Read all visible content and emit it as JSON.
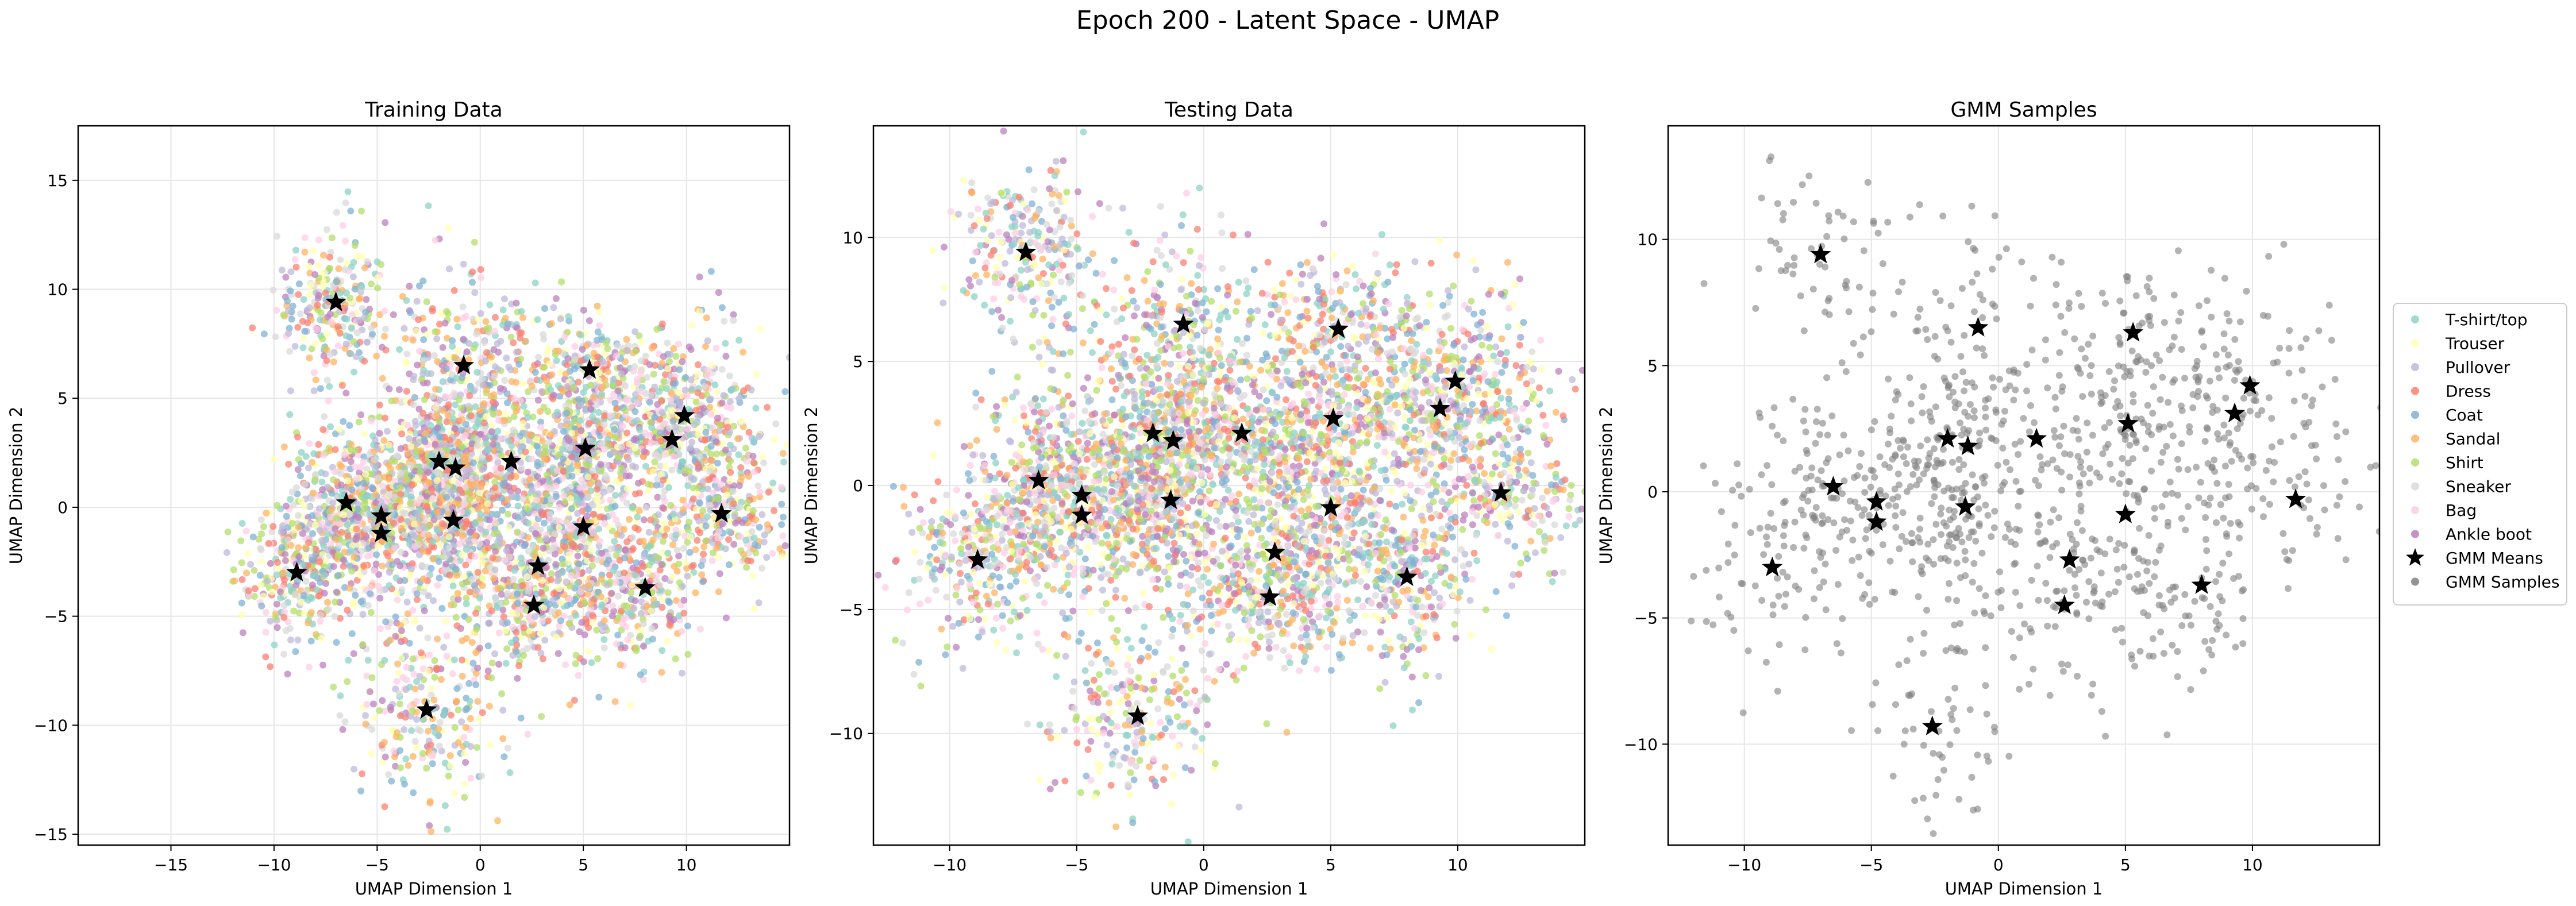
{
  "figure": {
    "suptitle": "Epoch 200 - Latent Space - UMAP"
  },
  "legend": {
    "placement": "right-center",
    "items": [
      {
        "label": "T-shirt/top",
        "color": "#8dd3c7",
        "marker": "dot"
      },
      {
        "label": "Trouser",
        "color": "#ffffb3",
        "marker": "dot"
      },
      {
        "label": "Pullover",
        "color": "#bebada",
        "marker": "dot"
      },
      {
        "label": "Dress",
        "color": "#fb8072",
        "marker": "dot"
      },
      {
        "label": "Coat",
        "color": "#80b1d3",
        "marker": "dot"
      },
      {
        "label": "Sandal",
        "color": "#fdb462",
        "marker": "dot"
      },
      {
        "label": "Shirt",
        "color": "#b3de69",
        "marker": "dot"
      },
      {
        "label": "Sneaker",
        "color": "#d9d9d9",
        "marker": "dot"
      },
      {
        "label": "Bag",
        "color": "#fccde5",
        "marker": "dot"
      },
      {
        "label": "Ankle boot",
        "color": "#bc80bd",
        "marker": "dot"
      },
      {
        "label": "GMM Means",
        "color": "#000000",
        "marker": "star"
      },
      {
        "label": "GMM Samples",
        "color": "#808080",
        "marker": "dot"
      }
    ]
  },
  "chart_data": [
    {
      "type": "scatter",
      "title": "Training Data",
      "xlabel": "UMAP Dimension 1",
      "ylabel": "UMAP Dimension 2",
      "xlim": [
        -19.5,
        15
      ],
      "ylim": [
        -15.5,
        17.5
      ],
      "xticks": [
        -15,
        -10,
        -5,
        0,
        5,
        10
      ],
      "yticks": [
        -15,
        -10,
        -5,
        0,
        5,
        10,
        15
      ],
      "grid": true,
      "point_style": "class-colored",
      "gmm_means": [
        [
          -7.0,
          9.4
        ],
        [
          -0.8,
          6.5
        ],
        [
          5.3,
          6.3
        ],
        [
          -2.0,
          2.1
        ],
        [
          -1.2,
          1.8
        ],
        [
          1.5,
          2.1
        ],
        [
          5.1,
          2.7
        ],
        [
          9.9,
          4.2
        ],
        [
          9.3,
          3.1
        ],
        [
          -6.5,
          0.2
        ],
        [
          -4.8,
          -0.4
        ],
        [
          -4.8,
          -1.2
        ],
        [
          -1.3,
          -0.6
        ],
        [
          5.0,
          -0.9
        ],
        [
          11.7,
          -0.3
        ],
        [
          -8.9,
          -3.0
        ],
        [
          2.8,
          -2.7
        ],
        [
          2.6,
          -4.5
        ],
        [
          8.0,
          -3.7
        ],
        [
          -2.6,
          -9.3
        ]
      ]
    },
    {
      "type": "scatter",
      "title": "Testing Data",
      "xlabel": "UMAP Dimension 1",
      "ylabel": "UMAP Dimension 2",
      "xlim": [
        -13,
        15
      ],
      "ylim": [
        -14.5,
        14.5
      ],
      "xticks": [
        -10,
        -5,
        0,
        5,
        10
      ],
      "yticks": [
        -10,
        -5,
        0,
        5,
        10
      ],
      "grid": true,
      "point_style": "class-colored",
      "gmm_means": [
        [
          -7.0,
          9.4
        ],
        [
          -0.8,
          6.5
        ],
        [
          5.3,
          6.3
        ],
        [
          -2.0,
          2.1
        ],
        [
          -1.2,
          1.8
        ],
        [
          1.5,
          2.1
        ],
        [
          5.1,
          2.7
        ],
        [
          9.9,
          4.2
        ],
        [
          9.3,
          3.1
        ],
        [
          -6.5,
          0.2
        ],
        [
          -4.8,
          -0.4
        ],
        [
          -4.8,
          -1.2
        ],
        [
          -1.3,
          -0.6
        ],
        [
          5.0,
          -0.9
        ],
        [
          11.7,
          -0.3
        ],
        [
          -8.9,
          -3.0
        ],
        [
          2.8,
          -2.7
        ],
        [
          2.6,
          -4.5
        ],
        [
          8.0,
          -3.7
        ],
        [
          -2.6,
          -9.3
        ]
      ]
    },
    {
      "type": "scatter",
      "title": "GMM Samples",
      "xlabel": "UMAP Dimension 1",
      "ylabel": "UMAP Dimension 2",
      "xlim": [
        -13,
        15
      ],
      "ylim": [
        -14,
        14.5
      ],
      "xticks": [
        -10,
        -5,
        0,
        5,
        10
      ],
      "yticks": [
        -10,
        -5,
        0,
        5,
        10
      ],
      "grid": true,
      "point_style": "gray",
      "gmm_means": [
        [
          -7.0,
          9.4
        ],
        [
          -0.8,
          6.5
        ],
        [
          5.3,
          6.3
        ],
        [
          -2.0,
          2.1
        ],
        [
          -1.2,
          1.8
        ],
        [
          1.5,
          2.1
        ],
        [
          5.1,
          2.7
        ],
        [
          9.9,
          4.2
        ],
        [
          9.3,
          3.1
        ],
        [
          -6.5,
          0.2
        ],
        [
          -4.8,
          -0.4
        ],
        [
          -4.8,
          -1.2
        ],
        [
          -1.3,
          -0.6
        ],
        [
          5.0,
          -0.9
        ],
        [
          11.7,
          -0.3
        ],
        [
          -8.9,
          -3.0
        ],
        [
          2.8,
          -2.7
        ],
        [
          2.6,
          -4.5
        ],
        [
          8.0,
          -3.7
        ],
        [
          -2.6,
          -9.3
        ]
      ]
    }
  ]
}
